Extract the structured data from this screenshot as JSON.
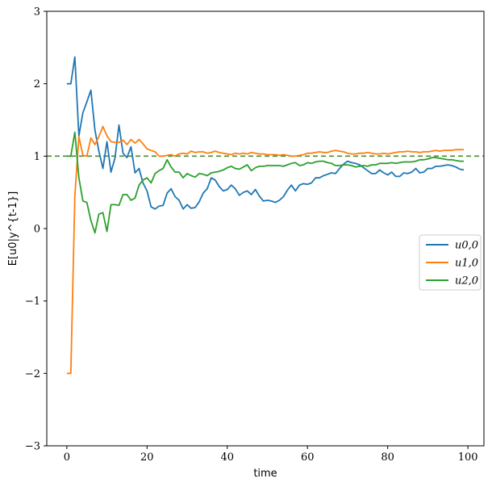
{
  "chart_data": {
    "type": "line",
    "title": "",
    "xlabel": "time",
    "ylabel": "E[u0|y^{t-1}]",
    "xlim": [
      -5,
      104
    ],
    "ylim": [
      -3,
      3
    ],
    "xticks": [
      0,
      20,
      40,
      60,
      80,
      100
    ],
    "yticks": [
      -3,
      -2,
      -1,
      0,
      1,
      2,
      3
    ],
    "xtick_labels": [
      "0",
      "20",
      "40",
      "60",
      "80",
      "100"
    ],
    "ytick_labels": [
      "−3",
      "−2",
      "−1",
      "0",
      "1",
      "2",
      "3"
    ],
    "grid": false,
    "legend_position": "center-right",
    "reference_line": {
      "y": 1.0,
      "style": "dashed",
      "color": "#4a8f2e"
    },
    "x": [
      0,
      1,
      2,
      3,
      4,
      5,
      6,
      7,
      8,
      9,
      10,
      11,
      12,
      13,
      14,
      15,
      16,
      17,
      18,
      19,
      20,
      21,
      22,
      23,
      24,
      25,
      26,
      27,
      28,
      29,
      30,
      31,
      32,
      33,
      34,
      35,
      36,
      37,
      38,
      39,
      40,
      41,
      42,
      43,
      44,
      45,
      46,
      47,
      48,
      49,
      50,
      51,
      52,
      53,
      54,
      55,
      56,
      57,
      58,
      59,
      60,
      61,
      62,
      63,
      64,
      65,
      66,
      67,
      68,
      69,
      70,
      71,
      72,
      73,
      74,
      75,
      76,
      77,
      78,
      79,
      80,
      81,
      82,
      83,
      84,
      85,
      86,
      87,
      88,
      89,
      90,
      91,
      92,
      93,
      94,
      95,
      96,
      97,
      98,
      99
    ],
    "series": [
      {
        "name": "u0,0",
        "color": "#1f77b4",
        "values": [
          2.0,
          2.0,
          2.37,
          1.28,
          1.6,
          1.75,
          1.91,
          1.36,
          1.07,
          0.83,
          1.2,
          0.78,
          0.97,
          1.43,
          1.04,
          0.98,
          1.13,
          0.77,
          0.83,
          0.63,
          0.52,
          0.3,
          0.27,
          0.31,
          0.32,
          0.49,
          0.55,
          0.44,
          0.39,
          0.27,
          0.33,
          0.28,
          0.29,
          0.37,
          0.49,
          0.55,
          0.7,
          0.67,
          0.58,
          0.52,
          0.54,
          0.6,
          0.55,
          0.46,
          0.5,
          0.52,
          0.47,
          0.54,
          0.45,
          0.38,
          0.39,
          0.38,
          0.36,
          0.39,
          0.44,
          0.53,
          0.6,
          0.52,
          0.6,
          0.62,
          0.61,
          0.63,
          0.7,
          0.7,
          0.73,
          0.75,
          0.77,
          0.76,
          0.83,
          0.89,
          0.93,
          0.91,
          0.9,
          0.88,
          0.84,
          0.8,
          0.76,
          0.76,
          0.81,
          0.77,
          0.74,
          0.78,
          0.72,
          0.72,
          0.77,
          0.76,
          0.78,
          0.83,
          0.77,
          0.78,
          0.83,
          0.83,
          0.86,
          0.86,
          0.87,
          0.88,
          0.87,
          0.85,
          0.82,
          0.81
        ]
      },
      {
        "name": "u1,0",
        "color": "#ff7f0e",
        "values": [
          -2.0,
          -2.0,
          0.45,
          1.27,
          1.01,
          1.0,
          1.25,
          1.16,
          1.27,
          1.41,
          1.28,
          1.2,
          1.19,
          1.19,
          1.22,
          1.16,
          1.23,
          1.18,
          1.23,
          1.17,
          1.1,
          1.08,
          1.06,
          1.0,
          1.0,
          1.01,
          1.02,
          1.0,
          1.03,
          1.04,
          1.03,
          1.07,
          1.05,
          1.06,
          1.06,
          1.04,
          1.05,
          1.07,
          1.05,
          1.04,
          1.03,
          1.02,
          1.04,
          1.03,
          1.04,
          1.03,
          1.05,
          1.04,
          1.03,
          1.03,
          1.02,
          1.02,
          1.02,
          1.01,
          1.02,
          1.01,
          1.0,
          1.0,
          1.01,
          1.02,
          1.04,
          1.04,
          1.05,
          1.06,
          1.05,
          1.05,
          1.07,
          1.08,
          1.07,
          1.06,
          1.04,
          1.03,
          1.03,
          1.04,
          1.04,
          1.05,
          1.04,
          1.03,
          1.03,
          1.04,
          1.03,
          1.04,
          1.05,
          1.06,
          1.06,
          1.07,
          1.06,
          1.06,
          1.05,
          1.06,
          1.06,
          1.07,
          1.08,
          1.07,
          1.08,
          1.08,
          1.08,
          1.09,
          1.09,
          1.09
        ]
      },
      {
        "name": "u2,0",
        "color": "#2ca02c",
        "values": [
          1.0,
          1.0,
          1.33,
          0.7,
          0.38,
          0.36,
          0.11,
          -0.06,
          0.2,
          0.22,
          -0.04,
          0.33,
          0.33,
          0.32,
          0.47,
          0.47,
          0.39,
          0.42,
          0.6,
          0.67,
          0.7,
          0.63,
          0.76,
          0.8,
          0.83,
          0.95,
          0.85,
          0.78,
          0.78,
          0.7,
          0.76,
          0.73,
          0.71,
          0.76,
          0.75,
          0.73,
          0.77,
          0.78,
          0.79,
          0.81,
          0.84,
          0.86,
          0.83,
          0.82,
          0.85,
          0.88,
          0.8,
          0.84,
          0.86,
          0.86,
          0.87,
          0.87,
          0.87,
          0.87,
          0.86,
          0.88,
          0.9,
          0.91,
          0.87,
          0.88,
          0.91,
          0.9,
          0.92,
          0.93,
          0.93,
          0.91,
          0.9,
          0.87,
          0.87,
          0.88,
          0.88,
          0.87,
          0.85,
          0.86,
          0.87,
          0.86,
          0.88,
          0.88,
          0.9,
          0.9,
          0.9,
          0.91,
          0.9,
          0.91,
          0.92,
          0.92,
          0.92,
          0.93,
          0.95,
          0.95,
          0.96,
          0.98,
          0.98,
          0.97,
          0.96,
          0.95,
          0.95,
          0.94,
          0.93,
          0.93
        ]
      }
    ]
  }
}
